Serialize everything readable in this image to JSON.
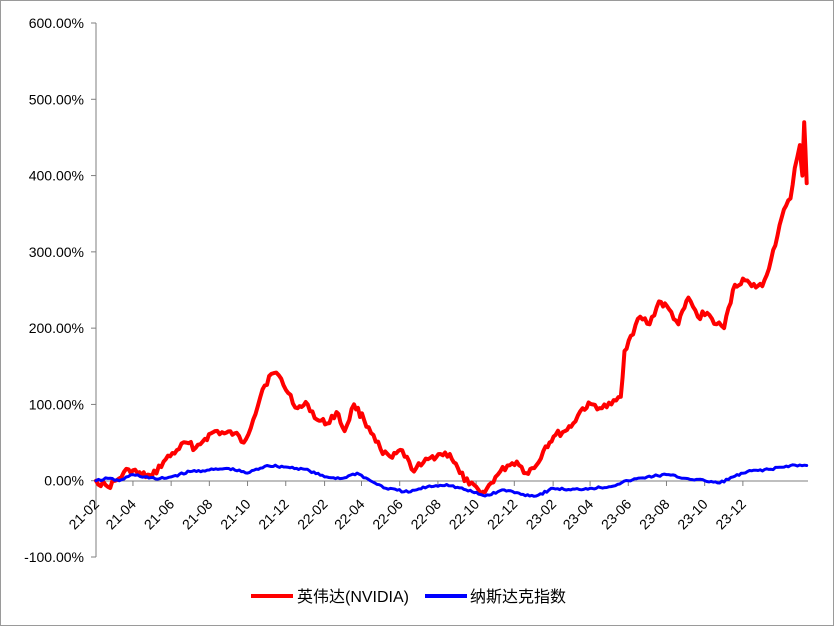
{
  "chart_data": {
    "type": "line",
    "title": "",
    "xlabel": "",
    "ylabel": "",
    "ylim": [
      -100,
      600
    ],
    "y_ticks": [
      "600.00%",
      "500.00%",
      "400.00%",
      "300.00%",
      "200.00%",
      "100.00%",
      "0.00%",
      "-100.00%"
    ],
    "y_tick_values": [
      600,
      500,
      400,
      300,
      200,
      100,
      0,
      -100
    ],
    "x_ticks": [
      "21-02",
      "21-04",
      "21-06",
      "21-08",
      "21-10",
      "21-12",
      "22-02",
      "22-04",
      "22-06",
      "22-08",
      "22-10",
      "22-12",
      "23-02",
      "23-04",
      "23-06",
      "23-08",
      "23-10",
      "23-12"
    ],
    "x_domain": [
      "2021-02",
      "2024-03"
    ],
    "grid": false,
    "legend_position": "bottom",
    "series": [
      {
        "name": "英伟达(NVIDIA)",
        "color": "#ff0000",
        "points": [
          [
            "2021-02-01",
            0
          ],
          [
            "2021-02-20",
            -8
          ],
          [
            "2021-03-10",
            3
          ],
          [
            "2021-03-25",
            15
          ],
          [
            "2021-04-15",
            8
          ],
          [
            "2021-05-01",
            5
          ],
          [
            "2021-05-20",
            25
          ],
          [
            "2021-06-10",
            40
          ],
          [
            "2021-06-25",
            50
          ],
          [
            "2021-07-10",
            43
          ],
          [
            "2021-07-25",
            55
          ],
          [
            "2021-08-10",
            65
          ],
          [
            "2021-08-25",
            62
          ],
          [
            "2021-09-10",
            62
          ],
          [
            "2021-09-25",
            50
          ],
          [
            "2021-10-10",
            80
          ],
          [
            "2021-10-25",
            120
          ],
          [
            "2021-11-08",
            140
          ],
          [
            "2021-11-20",
            138
          ],
          [
            "2021-12-05",
            115
          ],
          [
            "2021-12-20",
            95
          ],
          [
            "2022-01-05",
            100
          ],
          [
            "2022-01-20",
            80
          ],
          [
            "2022-02-05",
            75
          ],
          [
            "2022-02-20",
            90
          ],
          [
            "2022-03-05",
            65
          ],
          [
            "2022-03-20",
            100
          ],
          [
            "2022-04-05",
            80
          ],
          [
            "2022-04-20",
            60
          ],
          [
            "2022-05-05",
            35
          ],
          [
            "2022-05-20",
            30
          ],
          [
            "2022-06-05",
            40
          ],
          [
            "2022-06-20",
            15
          ],
          [
            "2022-07-05",
            20
          ],
          [
            "2022-07-20",
            30
          ],
          [
            "2022-08-05",
            35
          ],
          [
            "2022-08-20",
            35
          ],
          [
            "2022-09-05",
            10
          ],
          [
            "2022-09-20",
            -5
          ],
          [
            "2022-10-05",
            -12
          ],
          [
            "2022-10-15",
            -15
          ],
          [
            "2022-11-01",
            5
          ],
          [
            "2022-11-20",
            20
          ],
          [
            "2022-12-05",
            25
          ],
          [
            "2022-12-20",
            10
          ],
          [
            "2023-01-05",
            20
          ],
          [
            "2023-01-20",
            45
          ],
          [
            "2023-02-05",
            60
          ],
          [
            "2023-02-20",
            65
          ],
          [
            "2023-03-05",
            75
          ],
          [
            "2023-03-20",
            95
          ],
          [
            "2023-04-05",
            100
          ],
          [
            "2023-04-20",
            95
          ],
          [
            "2023-05-05",
            100
          ],
          [
            "2023-05-20",
            110
          ],
          [
            "2023-05-26",
            170
          ],
          [
            "2023-06-05",
            190
          ],
          [
            "2023-06-20",
            215
          ],
          [
            "2023-07-05",
            205
          ],
          [
            "2023-07-20",
            235
          ],
          [
            "2023-08-05",
            225
          ],
          [
            "2023-08-20",
            205
          ],
          [
            "2023-09-05",
            240
          ],
          [
            "2023-09-20",
            215
          ],
          [
            "2023-10-05",
            220
          ],
          [
            "2023-10-20",
            205
          ],
          [
            "2023-11-01",
            200
          ],
          [
            "2023-11-15",
            250
          ],
          [
            "2023-12-01",
            265
          ],
          [
            "2023-12-15",
            255
          ],
          [
            "2024-01-01",
            255
          ],
          [
            "2024-01-15",
            290
          ],
          [
            "2024-02-01",
            345
          ],
          [
            "2024-02-15",
            370
          ],
          [
            "2024-02-22",
            410
          ],
          [
            "2024-03-01",
            440
          ],
          [
            "2024-03-05",
            400
          ],
          [
            "2024-03-08",
            470
          ],
          [
            "2024-03-12",
            390
          ]
        ]
      },
      {
        "name": "纳斯达克指数",
        "color": "#0000ff",
        "points": [
          [
            "2021-02-01",
            0
          ],
          [
            "2021-02-20",
            3
          ],
          [
            "2021-03-10",
            0
          ],
          [
            "2021-04-01",
            8
          ],
          [
            "2021-04-20",
            5
          ],
          [
            "2021-05-10",
            2
          ],
          [
            "2021-06-01",
            5
          ],
          [
            "2021-07-01",
            12
          ],
          [
            "2021-08-01",
            14
          ],
          [
            "2021-09-01",
            16
          ],
          [
            "2021-10-01",
            10
          ],
          [
            "2021-11-01",
            20
          ],
          [
            "2021-12-01",
            18
          ],
          [
            "2022-01-01",
            15
          ],
          [
            "2022-02-01",
            5
          ],
          [
            "2022-03-01",
            3
          ],
          [
            "2022-03-25",
            10
          ],
          [
            "2022-04-15",
            0
          ],
          [
            "2022-05-10",
            -10
          ],
          [
            "2022-06-15",
            -15
          ],
          [
            "2022-07-15",
            -8
          ],
          [
            "2022-08-15",
            -5
          ],
          [
            "2022-09-15",
            -12
          ],
          [
            "2022-10-15",
            -20
          ],
          [
            "2022-11-15",
            -12
          ],
          [
            "2022-12-15",
            -18
          ],
          [
            "2023-01-05",
            -20
          ],
          [
            "2023-02-01",
            -10
          ],
          [
            "2023-03-01",
            -12
          ],
          [
            "2023-04-01",
            -10
          ],
          [
            "2023-05-01",
            -8
          ],
          [
            "2023-06-01",
            0
          ],
          [
            "2023-07-01",
            5
          ],
          [
            "2023-08-01",
            8
          ],
          [
            "2023-09-01",
            3
          ],
          [
            "2023-10-01",
            0
          ],
          [
            "2023-10-25",
            -3
          ],
          [
            "2023-11-15",
            5
          ],
          [
            "2023-12-15",
            13
          ],
          [
            "2024-01-15",
            15
          ],
          [
            "2024-02-15",
            20
          ],
          [
            "2024-03-12",
            20
          ]
        ]
      }
    ]
  }
}
